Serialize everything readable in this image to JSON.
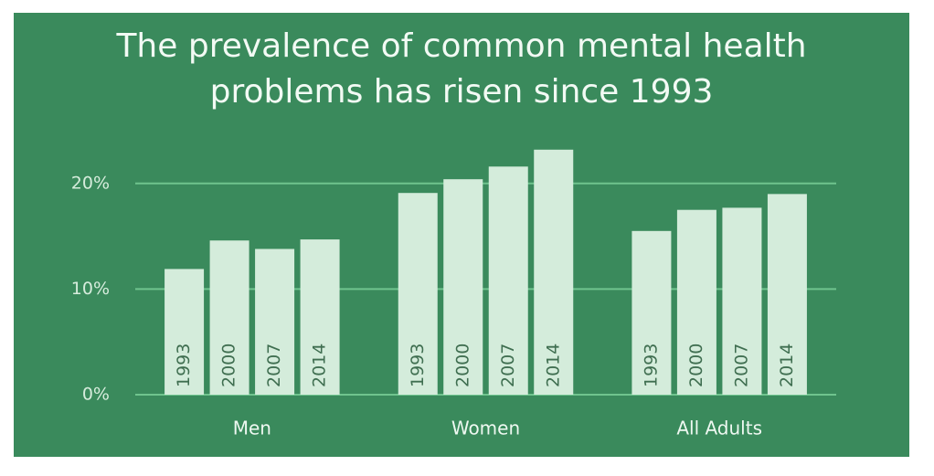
{
  "chart_data": {
    "type": "bar",
    "title": "The prevalence of common mental health problems has risen since 1993",
    "categories": [
      "Men",
      "Women",
      "All Adults"
    ],
    "series": [
      {
        "name": "1993",
        "color": "#d4ecdb",
        "values": [
          11.9,
          19.1,
          15.5
        ]
      },
      {
        "name": "2000",
        "color": "#d4ecdb",
        "values": [
          14.6,
          20.4,
          17.5
        ]
      },
      {
        "name": "2007",
        "color": "#d4ecdb",
        "values": [
          13.8,
          21.6,
          17.7
        ]
      },
      {
        "name": "2014",
        "color": "#d4ecdb",
        "values": [
          14.7,
          23.2,
          19.0
        ]
      }
    ],
    "ylim": [
      0,
      25
    ],
    "yticks": [
      {
        "value": 0,
        "label": "0%"
      },
      {
        "value": 10,
        "label": "10%"
      },
      {
        "value": 20,
        "label": "20%"
      }
    ],
    "grid": true
  }
}
